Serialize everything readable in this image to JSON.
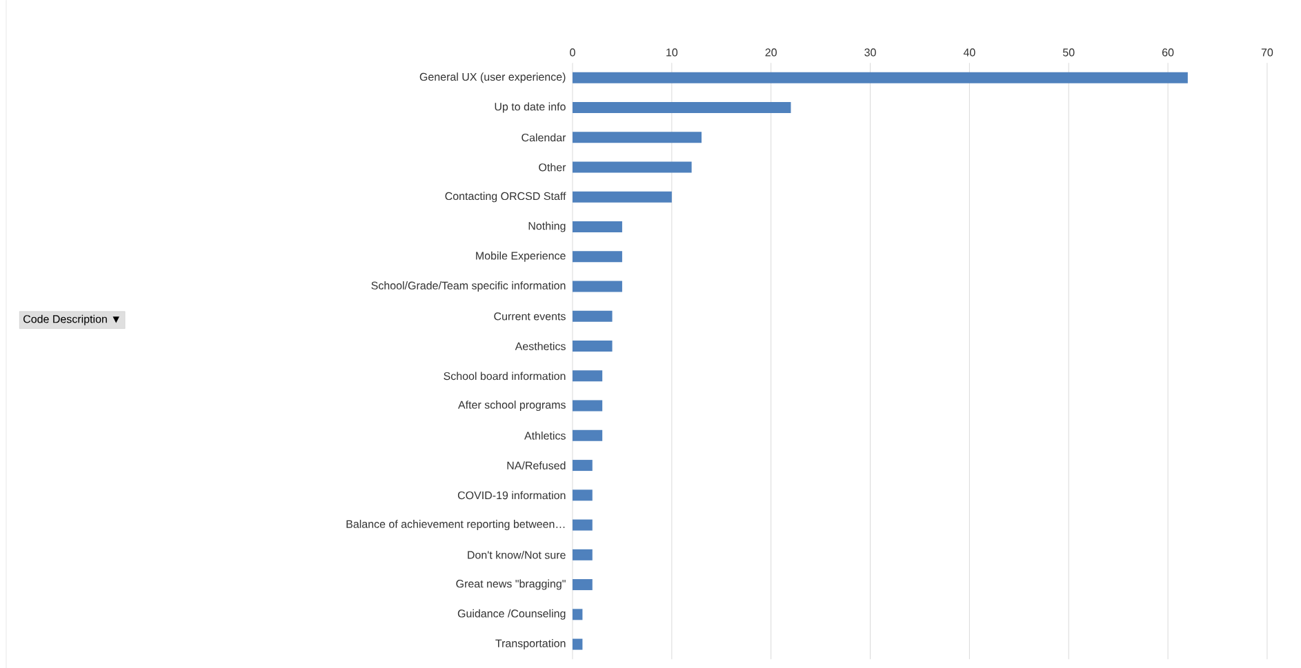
{
  "chart_data": {
    "type": "bar",
    "orientation": "horizontal",
    "annotations": [
      "Code Description ▼"
    ],
    "categories": [
      "General UX (user experience)",
      "Up to date info",
      "Calendar",
      "Other",
      "Contacting ORCSD Staff",
      "Nothing",
      "Mobile Experience",
      "School/Grade/Team specific information",
      "Current events",
      "Aesthetics",
      "School board information",
      "After school programs",
      "Athletics",
      "NA/Refused",
      "COVID-19 information",
      "Balance of achievement reporting between…",
      "Don't know/Not sure",
      "Great news \"bragging\"",
      "Guidance /Counseling",
      "Transportation"
    ],
    "values": [
      62,
      22,
      13,
      12,
      10,
      5,
      5,
      5,
      4,
      4,
      3,
      3,
      3,
      2,
      2,
      2,
      2,
      2,
      1,
      1
    ],
    "color": "#4f81bd",
    "xlim": [
      0,
      70
    ],
    "xticks": [
      0,
      10,
      20,
      30,
      40,
      50,
      60,
      70
    ],
    "grid": "x"
  }
}
